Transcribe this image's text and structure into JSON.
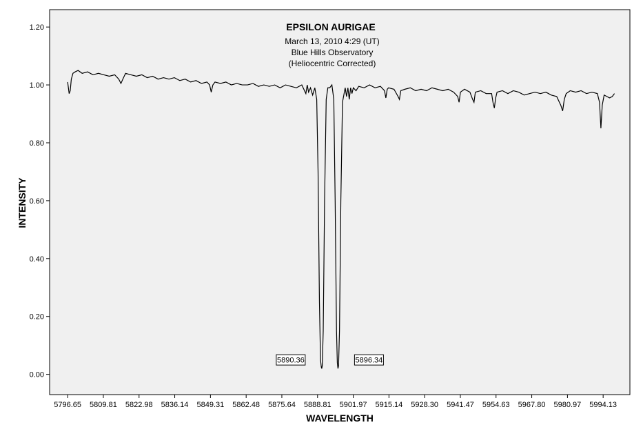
{
  "chart_data": {
    "type": "line",
    "title": "EPSILON AURIGAE",
    "subtitle_lines": [
      "March 13, 2010  4:29 (UT)",
      "Blue Hills Observatory",
      "(Heliocentric Corrected)"
    ],
    "xlabel": "WAVELENGTH",
    "ylabel": "INTENSITY",
    "xlim": [
      5790.0,
      6004.0
    ],
    "ylim": [
      -0.07,
      1.26
    ],
    "x_ticks": [
      5796.65,
      5809.81,
      5822.98,
      5836.14,
      5849.31,
      5862.48,
      5875.64,
      5888.81,
      5901.97,
      5915.14,
      5928.3,
      5941.47,
      5954.63,
      5967.8,
      5980.97,
      5994.13
    ],
    "x_tick_labels": [
      "5796.65",
      "5809.81",
      "5822.98",
      "5836.14",
      "5849.31",
      "5862.48",
      "5875.64",
      "5888.81",
      "5901.97",
      "5915.14",
      "5928.30",
      "5941.47",
      "5954.63",
      "5967.80",
      "5980.97",
      "5994.13"
    ],
    "y_ticks": [
      0.0,
      0.2,
      0.4,
      0.6,
      0.8,
      1.0,
      1.2
    ],
    "y_tick_labels": [
      "0.00",
      "0.20",
      "0.40",
      "0.60",
      "0.80",
      "1.00",
      "1.20"
    ],
    "grid": false,
    "legend": "none",
    "series": [
      {
        "x": [
          5796.65,
          5797.2,
          5797.6,
          5798.0,
          5798.6,
          5799.4,
          5800.5,
          5802.0,
          5804.0,
          5806.0,
          5808.0,
          5810.0,
          5812.0,
          5814.0,
          5815.5,
          5816.3,
          5817.0,
          5818.0,
          5820.0,
          5822.0,
          5824.0,
          5826.0,
          5828.0,
          5830.0,
          5832.0,
          5834.0,
          5836.0,
          5838.0,
          5840.0,
          5842.0,
          5844.0,
          5846.0,
          5848.0,
          5849.0,
          5849.6,
          5850.2,
          5851.0,
          5853.0,
          5855.0,
          5857.0,
          5859.0,
          5861.0,
          5863.0,
          5865.0,
          5867.0,
          5869.0,
          5871.0,
          5873.0,
          5875.0,
          5877.0,
          5879.0,
          5881.0,
          5883.0,
          5884.5,
          5885.0,
          5885.5,
          5886.2,
          5887.0,
          5887.8,
          5888.5,
          5889.0,
          5889.5,
          5889.9,
          5890.2,
          5890.36,
          5890.55,
          5890.9,
          5891.4,
          5892.0,
          5892.6,
          5893.3,
          5894.1,
          5894.8,
          5895.3,
          5895.8,
          5896.1,
          5896.34,
          5896.55,
          5896.9,
          5897.4,
          5898.0,
          5898.6,
          5899.0,
          5899.5,
          5900.0,
          5900.5,
          5901.0,
          5901.5,
          5902.0,
          5903.0,
          5904.0,
          5906.0,
          5908.0,
          5910.0,
          5912.0,
          5913.5,
          5914.0,
          5914.5,
          5915.0,
          5917.0,
          5918.5,
          5919.0,
          5919.5,
          5921.0,
          5923.0,
          5925.0,
          5927.0,
          5929.0,
          5931.0,
          5933.0,
          5935.0,
          5937.0,
          5939.0,
          5940.5,
          5941.0,
          5941.5,
          5943.0,
          5945.0,
          5946.0,
          5946.5,
          5947.0,
          5949.0,
          5951.0,
          5953.0,
          5953.5,
          5954.0,
          5954.5,
          5955.0,
          5957.0,
          5959.0,
          5961.0,
          5963.0,
          5965.0,
          5967.0,
          5969.0,
          5971.0,
          5973.0,
          5975.0,
          5977.0,
          5978.5,
          5979.2,
          5979.8,
          5980.5,
          5982.0,
          5984.0,
          5986.0,
          5988.0,
          5990.0,
          5992.0,
          5992.8,
          5993.3,
          5993.8,
          5994.5,
          5995.5,
          5996.5,
          5997.5,
          5998.3
        ],
        "y": [
          1.01,
          0.97,
          0.98,
          1.02,
          1.04,
          1.045,
          1.05,
          1.04,
          1.045,
          1.035,
          1.04,
          1.035,
          1.03,
          1.035,
          1.02,
          1.005,
          1.02,
          1.04,
          1.035,
          1.03,
          1.035,
          1.025,
          1.03,
          1.02,
          1.025,
          1.02,
          1.025,
          1.015,
          1.02,
          1.01,
          1.015,
          1.005,
          1.01,
          1.0,
          0.975,
          1.0,
          1.01,
          1.005,
          1.01,
          1.0,
          1.005,
          1.0,
          1.0,
          1.005,
          0.995,
          1.0,
          0.995,
          1.0,
          0.99,
          1.0,
          0.995,
          0.99,
          1.0,
          0.97,
          1.0,
          0.975,
          0.99,
          0.965,
          0.99,
          0.95,
          0.7,
          0.25,
          0.05,
          0.025,
          0.02,
          0.03,
          0.15,
          0.6,
          0.95,
          0.99,
          0.99,
          1.0,
          0.95,
          0.6,
          0.15,
          0.04,
          0.02,
          0.03,
          0.15,
          0.6,
          0.94,
          0.97,
          0.99,
          0.96,
          0.99,
          0.95,
          0.99,
          0.97,
          0.99,
          0.98,
          0.995,
          0.99,
          1.0,
          0.99,
          0.995,
          0.98,
          0.955,
          0.985,
          0.99,
          0.985,
          0.96,
          0.95,
          0.98,
          0.985,
          0.99,
          0.98,
          0.985,
          0.98,
          0.99,
          0.985,
          0.98,
          0.985,
          0.975,
          0.96,
          0.94,
          0.975,
          0.985,
          0.975,
          0.95,
          0.94,
          0.975,
          0.98,
          0.97,
          0.97,
          0.94,
          0.92,
          0.955,
          0.975,
          0.98,
          0.97,
          0.98,
          0.975,
          0.965,
          0.97,
          0.975,
          0.97,
          0.975,
          0.965,
          0.96,
          0.93,
          0.91,
          0.95,
          0.97,
          0.98,
          0.975,
          0.98,
          0.97,
          0.975,
          0.97,
          0.94,
          0.85,
          0.93,
          0.965,
          0.96,
          0.955,
          0.96,
          0.97
        ]
      }
    ],
    "annotations": [
      {
        "text": "5890.36",
        "x": 5890.36,
        "y": 0.05,
        "side": "left"
      },
      {
        "text": "5896.34",
        "x": 5896.34,
        "y": 0.05,
        "side": "right"
      }
    ]
  },
  "colors": {
    "plot_background": "#f0f0f0",
    "page_background": "#ffffff",
    "line": "#000000"
  }
}
